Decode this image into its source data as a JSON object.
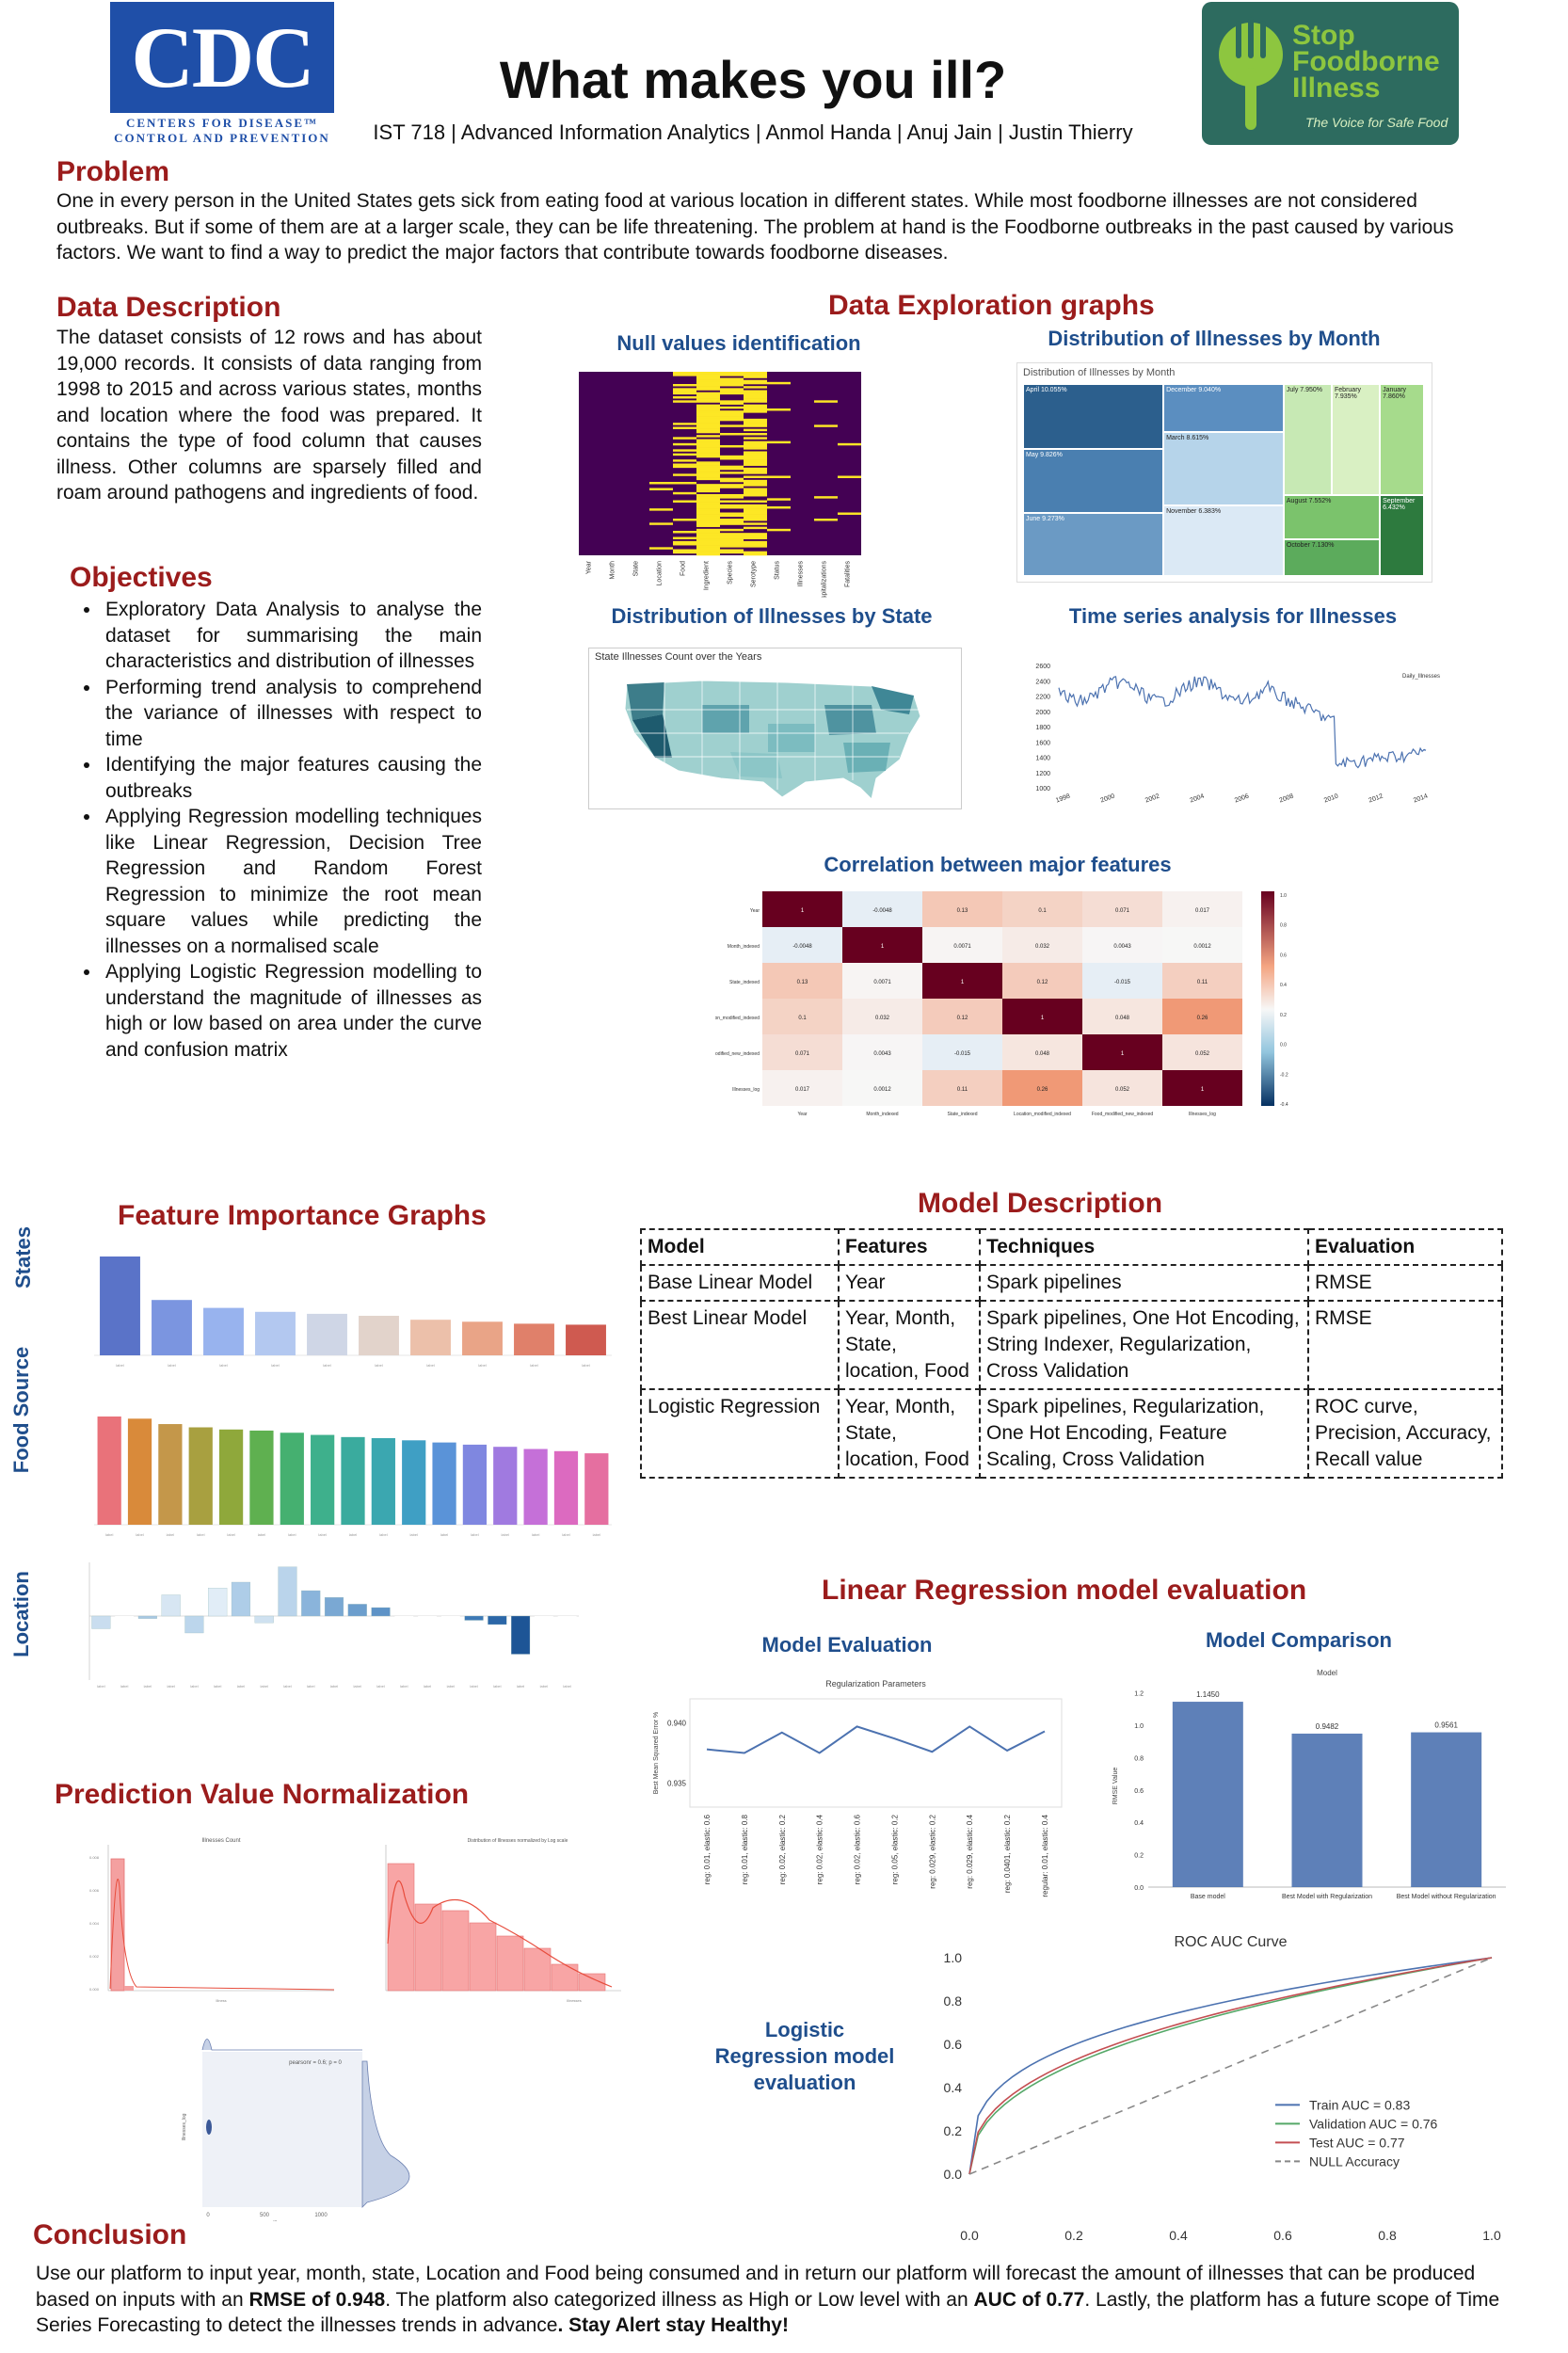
{
  "header": {
    "title": "What makes you ill?",
    "byline": "IST 718 | Advanced Information Analytics | Anmol Handa | Anuj Jain | Justin Thierry",
    "cdc_logo": {
      "text": "CDC",
      "tagline_1": "CENTERS FOR DISEASE™",
      "tagline_2": "CONTROL AND PREVENTION",
      "color": "#1f4fa8"
    },
    "sfi_logo": {
      "line1": "Stop",
      "line2": "Foodborne",
      "line3": "Illness",
      "tagline": "The Voice for Safe Food",
      "bg": "#2d6b5f",
      "accent": "#8dc63f"
    }
  },
  "problem": {
    "title": "Problem",
    "text": "One in every person in the United States gets sick from eating food at various location in different states. While most foodborne illnesses are not considered outbreaks. But if some of them are at a larger scale, they can be life threatening. The problem at hand is the Foodborne outbreaks in the past caused by various factors.  We want to find a way to predict the major factors that contribute towards foodborne diseases."
  },
  "data_description": {
    "title": "Data Description",
    "text": "The dataset consists of 12 rows and has about 19,000 records. It consists of data ranging from 1998 to 2015 and across various states, months and location where the food was prepared. It contains the type of food column that causes illness. Other columns are sparsely filled and roam around pathogens and ingredients of food."
  },
  "objectives": {
    "title": "Objectives",
    "items": [
      "Exploratory Data Analysis to analyse the dataset for summarising the main characteristics and distribution of illnesses",
      "Performing trend analysis to comprehend the variance of illnesses with respect to time",
      "Identifying the major features causing the outbreaks",
      "Applying Regression modelling techniques like Linear Regression, Decision Tree Regression and Random Forest Regression to minimize the root mean square values while predicting the illnesses on a normalised scale",
      "Applying Logistic Regression modelling to understand the magnitude of illnesses as high or low based on area under the curve and confusion matrix"
    ]
  },
  "exploration": {
    "title": "Data Exploration graphs",
    "null_title": "Null values identification",
    "null_cols": [
      "Year",
      "Month",
      "State",
      "Location",
      "Food",
      "Ingredient",
      "Species",
      "Serotype",
      "Status",
      "Illnesses",
      "Hospitalizations",
      "Fatalities"
    ],
    "month_title": "Distribution of Illnesses by Month",
    "month_inner_title": "Distribution of Illnesses by Month",
    "months": [
      {
        "name": "April",
        "pct": "10.055%"
      },
      {
        "name": "May",
        "pct": "9.826%"
      },
      {
        "name": "June",
        "pct": "9.273%"
      },
      {
        "name": "December",
        "pct": "9.040%"
      },
      {
        "name": "March",
        "pct": "8.615%"
      },
      {
        "name": "November",
        "pct": "6.383%"
      },
      {
        "name": "July",
        "pct": "7.950%"
      },
      {
        "name": "February",
        "pct": "7.935%"
      },
      {
        "name": "January",
        "pct": "7.860%"
      },
      {
        "name": "August",
        "pct": "7.552%"
      },
      {
        "name": "September",
        "pct": "6.432%"
      },
      {
        "name": "October",
        "pct": "7.130%"
      }
    ],
    "state_title": "Distribution of Illnesses by State",
    "state_inner_title": "State Illnesses Count over the Years",
    "time_title": "Time series analysis for Illnesses",
    "time_legend": "Daily_Illnesses",
    "corr_title": "Correlation between major features",
    "corr_labels": [
      "Year",
      "Month_indexed",
      "State_indexed",
      "Location_modified_indexed",
      "Food_modified_new_indexed",
      "Illnesses_log"
    ],
    "corr_matrix": [
      [
        1,
        -0.0048,
        0.13,
        0.1,
        0.071,
        0.017
      ],
      [
        -0.0048,
        1,
        0.0071,
        0.032,
        0.0043,
        0.0012
      ],
      [
        0.13,
        0.0071,
        1,
        0.12,
        -0.015,
        0.11
      ],
      [
        0.1,
        0.032,
        0.12,
        1,
        0.048,
        0.26
      ],
      [
        0.071,
        0.0043,
        -0.015,
        0.048,
        1,
        0.052
      ],
      [
        0.017,
        0.0012,
        0.11,
        0.26,
        0.052,
        1
      ]
    ],
    "corr_scale": [
      "1.0",
      "0.8",
      "0.6",
      "0.4",
      "0.2",
      "0.0",
      "-0.2",
      "-0.4"
    ]
  },
  "feature_importance": {
    "title": "Feature Importance Graphs",
    "labels": {
      "states": "States",
      "food": "Food Source",
      "location": "Location"
    }
  },
  "normalization": {
    "title": "Prediction Value Normalization",
    "chart1_title": "Illnesses Count",
    "chart2_title": "Distribution of Illnesses normalized by Log scale",
    "joint_text": "pearsonr = 0.6; p = 0"
  },
  "model_description": {
    "title": "Model Description",
    "headers": [
      "Model",
      "Features",
      "Techniques",
      "Evaluation"
    ],
    "rows": [
      {
        "model": "Base Linear Model",
        "features": "Year",
        "techniques": "Spark pipelines",
        "evaluation": "RMSE"
      },
      {
        "model": "Best Linear Model",
        "features": "Year, Month, State, location, Food",
        "techniques": "Spark pipelines, One Hot Encoding, String Indexer, Regularization, Cross Validation",
        "evaluation": "RMSE"
      },
      {
        "model": "Logistic Regression",
        "features": "Year, Month, State, location, Food",
        "techniques": "Spark pipelines, Regularization, One Hot Encoding, Feature Scaling, Cross Validation",
        "evaluation": "ROC curve, Precision, Accuracy, Recall value"
      }
    ]
  },
  "linear_eval": {
    "title": "Linear Regression model evaluation",
    "model_eval_title": "Model Evaluation",
    "model_comp_title": "Model Comparison",
    "chart_data": [
      {
        "type": "line",
        "title": "Regularization Parameters",
        "ylabel": "Best Mean Squared Error %",
        "categories": [
          "reg: 0.01, elastic: 0.6",
          "reg: 0.01, elastic: 0.8",
          "reg: 0.02, elastic: 0.2",
          "reg: 0.02, elastic: 0.4",
          "reg: 0.02, elastic: 0.6",
          "reg: 0.05, elastic: 0.2",
          "reg: 0.029, elastic: 0.2",
          "reg: 0.029, elastic: 0.4",
          "reg: 0.0401, elastic: 0.2",
          "regular: 0.01, elastic: 0.4"
        ],
        "values": [
          0.9378,
          0.9375,
          0.9392,
          0.9375,
          0.9397,
          0.9387,
          0.9376,
          0.9397,
          0.9377,
          0.9393
        ],
        "ylim": [
          0.933,
          0.942
        ],
        "yticks": [
          "0.935",
          "0.940"
        ]
      },
      {
        "type": "bar",
        "title": "Model",
        "ylabel": "RMSE Value",
        "categories": [
          "Base model",
          "Best Model with Regularization",
          "Best Model without Regularization"
        ],
        "values": [
          1.145,
          0.9482,
          0.9561
        ],
        "labels": [
          "1.1450",
          "0.9482",
          "0.9561"
        ],
        "ylim": [
          0,
          1.25
        ],
        "yticks": [
          "0.0",
          "0.2",
          "0.4",
          "0.6",
          "0.8",
          "1.0",
          "1.2"
        ]
      }
    ]
  },
  "logistic_eval": {
    "label_line1": "Logistic",
    "label_line2": "Regression model",
    "label_line3": "evaluation",
    "chart_data": {
      "type": "line",
      "title": "ROC AUC Curve",
      "xlim": [
        0,
        1
      ],
      "ylim": [
        0,
        1
      ],
      "xticks": [
        "0.0",
        "0.2",
        "0.4",
        "0.6",
        "0.8",
        "1.0"
      ],
      "yticks": [
        "0.0",
        "0.2",
        "0.4",
        "0.6",
        "0.8",
        "1.0"
      ],
      "series": [
        {
          "name": "Train AUC = 0.83",
          "color": "#4c72b0"
        },
        {
          "name": "Validation AUC = 0.76",
          "color": "#55a868"
        },
        {
          "name": "Test AUC = 0.77",
          "color": "#c44e52"
        },
        {
          "name": "NULL Accuracy",
          "color": "#888888"
        }
      ]
    }
  },
  "conclusion": {
    "title": "Conclusion",
    "p1": "Use our platform to input year, month, state, Location and Food being consumed and in return our platform will forecast the amount of illnesses that can be produced based on inputs with an ",
    "b1": "RMSE of 0.948",
    "p2": ". The platform also categorized illness as High or Low level with an ",
    "b2": "AUC of 0.77",
    "p3": ". Lastly, the platform has a future scope of Time Series Forecasting to detect the illnesses trends in advance",
    "b3": ".  Stay Alert stay Healthy!"
  }
}
